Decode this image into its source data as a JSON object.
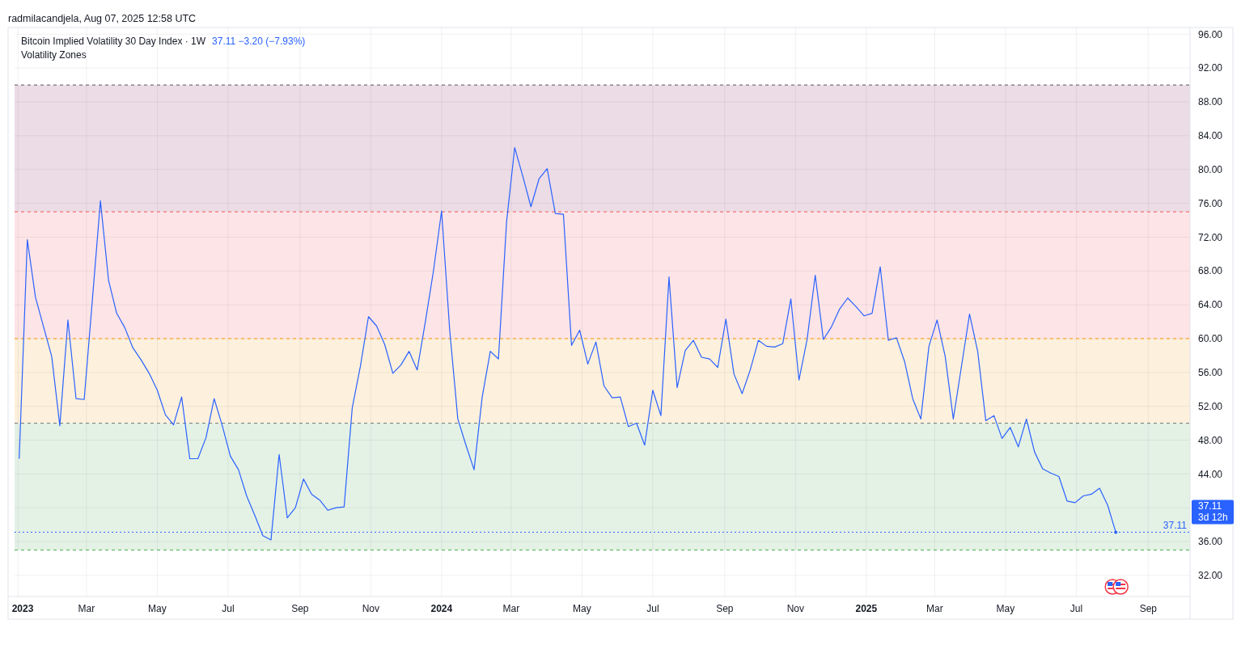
{
  "chart_data": {
    "type": "line",
    "title": "Bitcoin Implied Volatility 30 Day Index · 1W",
    "subtitle": "Volatility Zones",
    "annotations": [
      "radmilacandjela, Aug 07, 2025 12:58 UTC",
      "37.11  −3.20 (−7.93%)",
      "37.11",
      "3d 12h"
    ],
    "x": [
      "2023-01-02",
      "2023-01-09",
      "2023-01-16",
      "2023-01-23",
      "2023-01-30",
      "2023-02-06",
      "2023-02-13",
      "2023-02-20",
      "2023-02-27",
      "2023-03-06",
      "2023-03-13",
      "2023-03-20",
      "2023-03-27",
      "2023-04-03",
      "2023-04-10",
      "2023-04-17",
      "2023-04-24",
      "2023-05-01",
      "2023-05-08",
      "2023-05-15",
      "2023-05-22",
      "2023-05-29",
      "2023-06-05",
      "2023-06-12",
      "2023-06-19",
      "2023-06-26",
      "2023-07-03",
      "2023-07-10",
      "2023-07-17",
      "2023-07-24",
      "2023-07-31",
      "2023-08-07",
      "2023-08-14",
      "2023-08-21",
      "2023-08-28",
      "2023-09-04",
      "2023-09-11",
      "2023-09-18",
      "2023-09-25",
      "2023-10-02",
      "2023-10-09",
      "2023-10-16",
      "2023-10-23",
      "2023-10-30",
      "2023-11-06",
      "2023-11-13",
      "2023-11-20",
      "2023-11-27",
      "2023-12-04",
      "2023-12-11",
      "2023-12-18",
      "2023-12-25",
      "2024-01-01",
      "2024-01-08",
      "2024-01-15",
      "2024-01-22",
      "2024-01-29",
      "2024-02-05",
      "2024-02-12",
      "2024-02-19",
      "2024-02-26",
      "2024-03-04",
      "2024-03-11",
      "2024-03-18",
      "2024-03-25",
      "2024-04-01",
      "2024-04-08",
      "2024-04-15",
      "2024-04-22",
      "2024-04-29",
      "2024-05-06",
      "2024-05-13",
      "2024-05-20",
      "2024-05-27",
      "2024-06-03",
      "2024-06-10",
      "2024-06-17",
      "2024-06-24",
      "2024-07-01",
      "2024-07-08",
      "2024-07-15",
      "2024-07-22",
      "2024-07-29",
      "2024-08-05",
      "2024-08-12",
      "2024-08-19",
      "2024-08-26",
      "2024-09-02",
      "2024-09-09",
      "2024-09-16",
      "2024-09-23",
      "2024-09-30",
      "2024-10-07",
      "2024-10-14",
      "2024-10-21",
      "2024-10-28",
      "2024-11-04",
      "2024-11-11",
      "2024-11-18",
      "2024-11-25",
      "2024-12-02",
      "2024-12-09",
      "2024-12-16",
      "2024-12-23",
      "2024-12-30",
      "2025-01-06",
      "2025-01-13",
      "2025-01-20",
      "2025-01-27",
      "2025-02-03",
      "2025-02-10",
      "2025-02-17",
      "2025-02-24",
      "2025-03-03",
      "2025-03-10",
      "2025-03-17",
      "2025-03-24",
      "2025-03-31",
      "2025-04-07",
      "2025-04-14",
      "2025-04-21",
      "2025-04-28",
      "2025-05-05",
      "2025-05-12",
      "2025-05-19",
      "2025-05-26",
      "2025-06-02",
      "2025-06-09",
      "2025-06-16",
      "2025-06-23",
      "2025-06-30",
      "2025-07-07",
      "2025-07-14",
      "2025-07-21",
      "2025-07-28",
      "2025-08-04"
    ],
    "series": [
      {
        "color": "#2962ff",
        "values": [
          45.8,
          71.7,
          64.9,
          61.4,
          57.9,
          49.7,
          62.2,
          52.9,
          52.8,
          64.5,
          76.3,
          66.9,
          63.0,
          61.3,
          58.9,
          57.5,
          55.9,
          53.9,
          51.0,
          49.8,
          53.1,
          45.8,
          45.8,
          48.3,
          52.9,
          49.7,
          46.1,
          44.5,
          41.4,
          39.1,
          36.7,
          36.2,
          46.3,
          38.8,
          40.0,
          43.4,
          41.6,
          40.9,
          39.7,
          40.0,
          40.1,
          51.8,
          56.7,
          62.6,
          61.5,
          59.3,
          55.9,
          56.9,
          58.5,
          56.3,
          62.0,
          68.0,
          75.1,
          61.0,
          50.5,
          47.4,
          44.5,
          53.1,
          58.5,
          57.6,
          73.8,
          82.6,
          79.2,
          75.6,
          78.9,
          80.1,
          74.8,
          74.7,
          59.2,
          61.0,
          57.0,
          59.6,
          54.4,
          53.0,
          53.1,
          49.6,
          50.0,
          47.4,
          53.9,
          50.9,
          67.3,
          54.2,
          58.6,
          59.8,
          57.8,
          57.6,
          56.6,
          62.3,
          55.8,
          53.5,
          56.3,
          59.8,
          59.1,
          59.0,
          59.4,
          64.7,
          55.1,
          59.9,
          67.5,
          59.9,
          61.4,
          63.5,
          64.8,
          63.8,
          62.7,
          63.0,
          68.5,
          59.8,
          60.1,
          57.3,
          52.9,
          50.5,
          59.1,
          62.2,
          57.9,
          50.5,
          56.7,
          62.9,
          58.5,
          50.3,
          50.9,
          48.2,
          49.5,
          47.2,
          50.5,
          46.6,
          44.6,
          44.1,
          43.7,
          40.8,
          40.6,
          41.4,
          41.6,
          42.3,
          40.3,
          37.11
        ]
      }
    ],
    "xlim": [
      "2022-12-29",
      "2025-10-07"
    ],
    "xticks": [
      {
        "value": "2023-01-01",
        "label": "2023"
      },
      {
        "value": "2023-03-01",
        "label": "Mar"
      },
      {
        "value": "2023-05-01",
        "label": "May"
      },
      {
        "value": "2023-07-01",
        "label": "Jul"
      },
      {
        "value": "2023-09-01",
        "label": "Sep"
      },
      {
        "value": "2023-11-01",
        "label": "Nov"
      },
      {
        "value": "2024-01-01",
        "label": "2024"
      },
      {
        "value": "2024-03-01",
        "label": "Mar"
      },
      {
        "value": "2024-05-01",
        "label": "May"
      },
      {
        "value": "2024-07-01",
        "label": "Jul"
      },
      {
        "value": "2024-09-01",
        "label": "Sep"
      },
      {
        "value": "2024-11-01",
        "label": "Nov"
      },
      {
        "value": "2025-01-01",
        "label": "2025"
      },
      {
        "value": "2025-03-01",
        "label": "Mar"
      },
      {
        "value": "2025-05-01",
        "label": "May"
      },
      {
        "value": "2025-07-01",
        "label": "Jul"
      },
      {
        "value": "2025-09-01",
        "label": "Sep"
      }
    ],
    "ylim": [
      29.5,
      96.8
    ],
    "yticks": [
      {
        "value": 32,
        "label": "32.00"
      },
      {
        "value": 36,
        "label": "36.00"
      },
      {
        "value": 40,
        "label": null
      },
      {
        "value": 44,
        "label": "44.00"
      },
      {
        "value": 48,
        "label": "48.00"
      },
      {
        "value": 52,
        "label": "52.00"
      },
      {
        "value": 56,
        "label": "56.00"
      },
      {
        "value": 60,
        "label": "60.00"
      },
      {
        "value": 64,
        "label": "64.00"
      },
      {
        "value": 68,
        "label": "68.00"
      },
      {
        "value": 72,
        "label": "72.00"
      },
      {
        "value": 76,
        "label": "76.00"
      },
      {
        "value": 80,
        "label": "80.00"
      },
      {
        "value": 84,
        "label": "84.00"
      },
      {
        "value": 88,
        "label": "88.00"
      },
      {
        "value": 92,
        "label": "92.00"
      },
      {
        "value": 96,
        "label": "96.00"
      }
    ],
    "grid": true,
    "bands": [
      {
        "axis": "y",
        "from": 75,
        "to": 90,
        "color": "#ecdce6"
      },
      {
        "axis": "y",
        "from": 60,
        "to": 75,
        "color": "#fde4e6"
      },
      {
        "axis": "y",
        "from": 50,
        "to": 60,
        "color": "#fdf0dc"
      },
      {
        "axis": "y",
        "from": 35,
        "to": 50,
        "color": "#e4f1e5"
      }
    ],
    "ref_lines": [
      {
        "axis": "y",
        "value": 90,
        "color": "#555555",
        "line_style": "dashed"
      },
      {
        "axis": "y",
        "value": 75,
        "color": "#f05454",
        "line_style": "dashed"
      },
      {
        "axis": "y",
        "value": 60,
        "color": "#ff9800",
        "line_style": "dashed"
      },
      {
        "axis": "y",
        "value": 50,
        "color": "#777777",
        "line_style": "dashed"
      },
      {
        "axis": "y",
        "value": 35,
        "color": "#4caf50",
        "line_style": "dashed"
      },
      {
        "axis": "y",
        "value": 37.11,
        "color": "#2962ff",
        "line_style": "dotted",
        "label": "37.11"
      }
    ]
  }
}
